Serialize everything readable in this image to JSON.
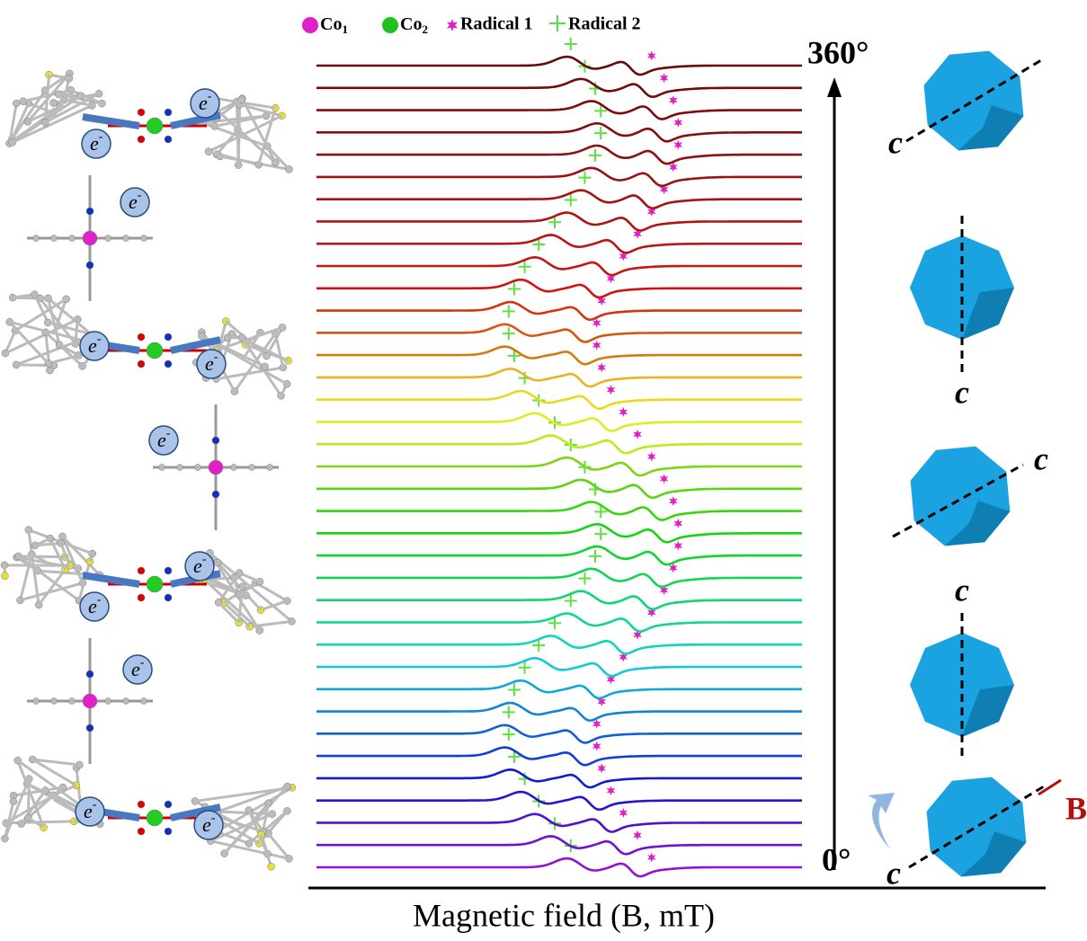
{
  "legend": [
    {
      "text": "Co",
      "sub": "1"
    },
    {
      "text": "Co",
      "sub": "2"
    },
    {
      "text": "Radical 1"
    },
    {
      "text": "Radical 2"
    }
  ],
  "angle_top": "360°",
  "angle_bottom": "0°",
  "axis_title": "Magnetic field (B, mT)",
  "crystal_axis_label": "c",
  "field_label": "B",
  "electron": {
    "base": "e",
    "sup": "-"
  }
}
